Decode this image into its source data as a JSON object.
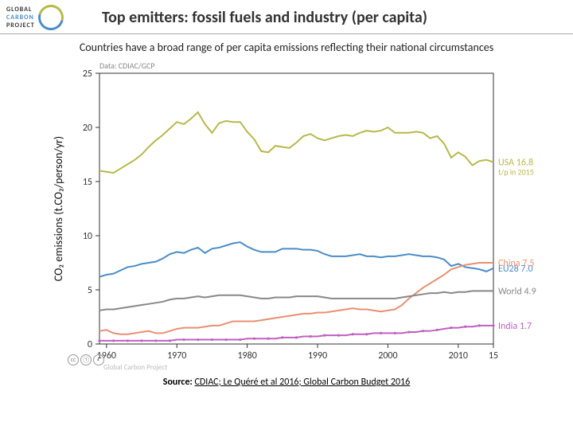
{
  "header": {
    "logo_l1": "GLOBAL",
    "logo_l2": "CARBON",
    "logo_l3": "PROJECT",
    "title": "Top emitters: fossil fuels and industry (per capita)"
  },
  "subtitle": "Countries have a broad range of per capita emissions reflecting their national circumstances",
  "chart": {
    "credit": "Data: CDIAC/GCP",
    "ylabel": "CO₂ emissions (t.CO₂/person/yr)",
    "xlim": [
      1959,
      2015
    ],
    "ylim": [
      0,
      25
    ],
    "yticks": [
      0,
      5,
      10,
      15,
      20,
      25
    ],
    "xticks": [
      1960,
      1970,
      1980,
      1990,
      2000,
      2010
    ],
    "xtick_end_label": "15",
    "axis_color": "#333333",
    "grid_color": "#f0f0f0",
    "series": [
      {
        "name": "usa",
        "color": "#b8b84a",
        "label": "USA 16.8",
        "sub": "t/p in 2015",
        "label_y": 16.8,
        "y": [
          16.0,
          15.9,
          15.8,
          16.2,
          16.6,
          17.0,
          17.5,
          18.2,
          18.8,
          19.3,
          19.9,
          20.5,
          20.3,
          20.8,
          21.4,
          20.3,
          19.5,
          20.4,
          20.6,
          20.5,
          20.5,
          19.6,
          18.9,
          17.8,
          17.7,
          18.3,
          18.2,
          18.1,
          18.6,
          19.2,
          19.4,
          19.0,
          18.8,
          19.0,
          19.2,
          19.3,
          19.2,
          19.5,
          19.7,
          19.6,
          19.7,
          20.0,
          19.5,
          19.5,
          19.5,
          19.6,
          19.5,
          19.0,
          19.2,
          18.5,
          17.2,
          17.7,
          17.3,
          16.5,
          16.9,
          17.0,
          16.8
        ]
      },
      {
        "name": "eu28",
        "color": "#4a8cc8",
        "label": "EU28 7.0",
        "label_y": 7.0,
        "y": [
          6.2,
          6.4,
          6.5,
          6.8,
          7.1,
          7.2,
          7.4,
          7.5,
          7.6,
          7.9,
          8.3,
          8.5,
          8.4,
          8.7,
          8.9,
          8.4,
          8.8,
          8.9,
          9.1,
          9.3,
          9.4,
          9.0,
          8.7,
          8.5,
          8.5,
          8.5,
          8.8,
          8.8,
          8.8,
          8.7,
          8.7,
          8.6,
          8.3,
          8.1,
          8.1,
          8.1,
          8.2,
          8.3,
          8.1,
          8.1,
          8.0,
          8.1,
          8.1,
          8.2,
          8.3,
          8.2,
          8.1,
          8.1,
          8.0,
          7.8,
          7.2,
          7.4,
          7.1,
          7.0,
          6.9,
          6.7,
          7.0
        ]
      },
      {
        "name": "china",
        "color": "#e89070",
        "label": "China 7.5",
        "label_y": 7.5,
        "y": [
          1.2,
          1.3,
          1.0,
          0.9,
          0.9,
          1.0,
          1.1,
          1.2,
          1.0,
          1.0,
          1.2,
          1.4,
          1.5,
          1.5,
          1.5,
          1.6,
          1.7,
          1.7,
          1.9,
          2.1,
          2.1,
          2.1,
          2.1,
          2.2,
          2.3,
          2.4,
          2.5,
          2.6,
          2.7,
          2.8,
          2.8,
          2.9,
          2.9,
          3.0,
          3.1,
          3.2,
          3.3,
          3.2,
          3.2,
          3.1,
          3.0,
          3.1,
          3.2,
          3.6,
          4.2,
          4.7,
          5.2,
          5.6,
          6.0,
          6.4,
          6.9,
          7.1,
          7.3,
          7.4,
          7.5,
          7.5,
          7.5
        ]
      },
      {
        "name": "world",
        "color": "#888888",
        "label": "World 4.9",
        "label_y": 4.9,
        "y": [
          3.1,
          3.2,
          3.2,
          3.3,
          3.4,
          3.5,
          3.6,
          3.7,
          3.8,
          3.9,
          4.1,
          4.2,
          4.2,
          4.3,
          4.4,
          4.3,
          4.4,
          4.5,
          4.5,
          4.5,
          4.5,
          4.4,
          4.3,
          4.2,
          4.2,
          4.3,
          4.3,
          4.3,
          4.4,
          4.4,
          4.4,
          4.4,
          4.3,
          4.2,
          4.2,
          4.2,
          4.2,
          4.2,
          4.2,
          4.2,
          4.2,
          4.2,
          4.2,
          4.3,
          4.4,
          4.5,
          4.6,
          4.7,
          4.7,
          4.8,
          4.7,
          4.8,
          4.8,
          4.9,
          4.9,
          4.9,
          4.9
        ]
      },
      {
        "name": "india",
        "color": "#c060c0",
        "label": "India 1.7",
        "label_y": 1.7,
        "y": [
          0.3,
          0.3,
          0.3,
          0.3,
          0.3,
          0.3,
          0.3,
          0.3,
          0.3,
          0.3,
          0.3,
          0.4,
          0.4,
          0.4,
          0.4,
          0.4,
          0.4,
          0.4,
          0.4,
          0.4,
          0.4,
          0.5,
          0.5,
          0.5,
          0.5,
          0.5,
          0.6,
          0.6,
          0.6,
          0.7,
          0.7,
          0.7,
          0.8,
          0.8,
          0.8,
          0.8,
          0.9,
          0.9,
          0.9,
          1.0,
          1.0,
          1.0,
          1.0,
          1.0,
          1.1,
          1.1,
          1.2,
          1.2,
          1.3,
          1.4,
          1.5,
          1.5,
          1.6,
          1.6,
          1.7,
          1.7,
          1.7
        ]
      }
    ]
  },
  "badges_label": "Global Carbon Project",
  "footer": {
    "pre": "Source: ",
    "a": "CDIAC;",
    "b": " Le Quéré et al 2016;",
    "c": " Global Carbon Budget 2016"
  }
}
